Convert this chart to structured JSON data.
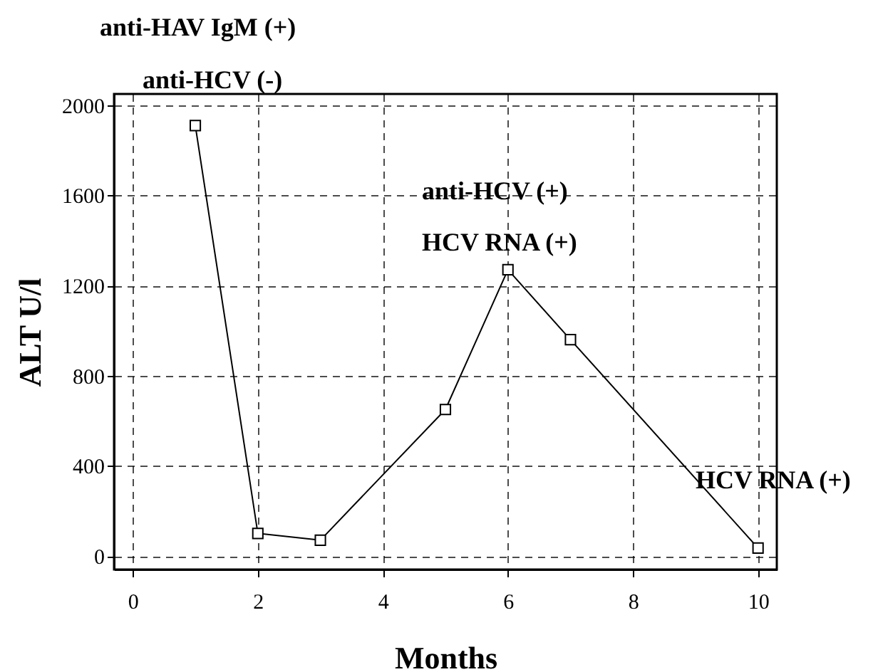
{
  "chart_data": {
    "type": "line",
    "xlabel": "Months",
    "ylabel": "ALT U/l",
    "x": [
      1,
      2,
      3,
      5,
      6,
      7,
      10
    ],
    "series": [
      {
        "color": "#000000",
        "values": [
          1910,
          100,
          70,
          650,
          1270,
          960,
          35
        ]
      }
    ],
    "xlim": [
      -0.3,
      10.3
    ],
    "ylim": [
      -60,
      2050
    ],
    "xticks": [
      0,
      2,
      4,
      6,
      8,
      10
    ],
    "yticks": [
      0,
      400,
      800,
      1200,
      1600,
      2000
    ],
    "grid": true,
    "marker": "square",
    "line_style": "solid",
    "annotations": [
      "anti-HAV IgM (+)",
      "anti-HCV (-)",
      "anti-HCV (+)",
      "HCV RNA (+)",
      "HCV RNA (+)"
    ]
  }
}
